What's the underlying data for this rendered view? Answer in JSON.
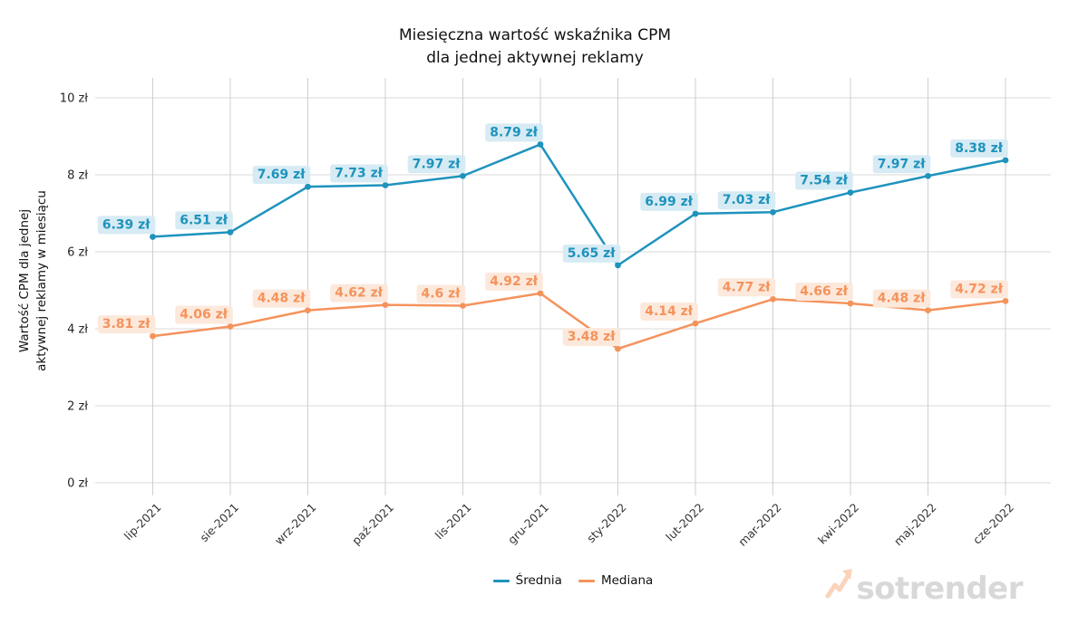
{
  "title": {
    "line1": "Miesięczna wartość wskaźnika CPM",
    "line2": "dla jednej aktywnej reklamy"
  },
  "watermark": {
    "text": "sotrender",
    "icon": "trend-up-arrow",
    "text_color": "#d8d8d8",
    "arrow_color": "#fbd3ba"
  },
  "legend": [
    {
      "label": "Średnia",
      "color": "#1e93bd"
    },
    {
      "label": "Mediana",
      "color": "#f5935c"
    }
  ],
  "chart_data": {
    "type": "line",
    "categories": [
      "lip-2021",
      "sie-2021",
      "wrz-2021",
      "paź-2021",
      "lis-2021",
      "gru-2021",
      "sty-2022",
      "lut-2022",
      "mar-2022",
      "kwi-2022",
      "maj-2022",
      "cze-2022"
    ],
    "series": [
      {
        "name": "Średnia",
        "color": "#1e93bd",
        "label_bg": "#d7ebf4",
        "values": [
          6.39,
          6.51,
          7.69,
          7.73,
          7.97,
          8.79,
          5.65,
          6.99,
          7.03,
          7.54,
          7.97,
          8.38
        ],
        "labels": [
          "6.39 zł",
          "6.51 zł",
          "7.69 zł",
          "7.73 zł",
          "7.97 zł",
          "8.79 zł",
          "5.65 zł",
          "6.99 zł",
          "7.03 zł",
          "7.54 zł",
          "7.97 zł",
          "8.38 zł"
        ]
      },
      {
        "name": "Mediana",
        "color": "#f5935c",
        "label_bg": "#fce9dc",
        "values": [
          3.81,
          4.06,
          4.48,
          4.62,
          4.6,
          4.92,
          3.48,
          4.14,
          4.77,
          4.66,
          4.48,
          4.72
        ],
        "labels": [
          "3.81 zł",
          "4.06 zł",
          "4.48 zł",
          "4.62 zł",
          "4.6 zł",
          "4.92 zł",
          "3.48 zł",
          "4.14 zł",
          "4.77 zł",
          "4.66 zł",
          "4.48 zł",
          "4.72 zł"
        ]
      }
    ],
    "ylabel_line1": "Wartość CPM dla jednej",
    "ylabel_line2": "aktywnej reklamy w miesiącu",
    "y_ticks": [
      {
        "value": 0,
        "label": "0 zł"
      },
      {
        "value": 2,
        "label": "2 zł"
      },
      {
        "value": 4,
        "label": "4 zł"
      },
      {
        "value": 6,
        "label": "6 zł"
      },
      {
        "value": 8,
        "label": "8 zł"
      },
      {
        "value": 10,
        "label": "10 zł"
      }
    ],
    "ylim": [
      0,
      10
    ],
    "grid": true,
    "legend_position": "bottom"
  }
}
